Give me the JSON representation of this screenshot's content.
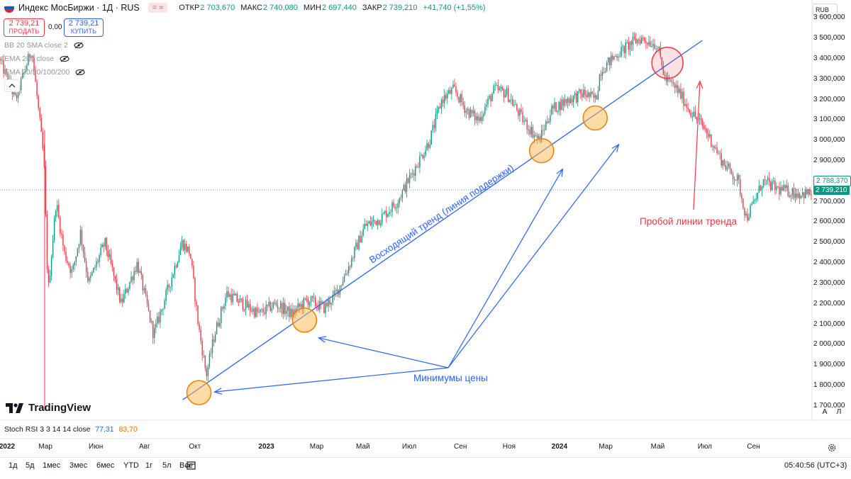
{
  "header": {
    "symbol_title": "Индекс МосБиржи · 1Д · RUS",
    "badge": "= ≈",
    "ohlc": [
      {
        "label": "ОТКР",
        "value": "2 703,670"
      },
      {
        "label": "МАКС",
        "value": "2 740,080"
      },
      {
        "label": "МИН",
        "value": "2 697,440"
      },
      {
        "label": "ЗАКР",
        "value": "2 739,210"
      }
    ],
    "change": "+41,740 (+1,55%)"
  },
  "trade": {
    "sell_price": "2 739,21",
    "sell_label": "ПРОДАТЬ",
    "spread": "0,00",
    "buy_price": "2 739,21",
    "buy_label": "КУПИТЬ"
  },
  "indicators": [
    "BB 20 SMA close 2",
    "EMA 200 close",
    "EMA 20/50/100/200"
  ],
  "currency": "RUB",
  "price_axis": {
    "labels": [
      "3 600,000",
      "3 500,000",
      "3 400,000",
      "3 300,000",
      "3 200,000",
      "3 100,000",
      "3 000,000",
      "2 900,000",
      "2 800,000",
      "2 700,000",
      "2 600,000",
      "2 500,000",
      "2 400,000",
      "2 300,000",
      "2 200,000",
      "2 100,000",
      "2 000,000",
      "1 900,000",
      "1 800,000",
      "1 700,000"
    ],
    "tag_upper": "2 788,370",
    "tag_current": "2 739,210"
  },
  "time_axis": [
    "2022",
    "Мар",
    "Июн",
    "Авг",
    "Окт",
    "2023",
    "Мар",
    "Май",
    "Июл",
    "Сен",
    "Ноя",
    "2024",
    "Мар",
    "Май",
    "Июл",
    "Сен"
  ],
  "logo_text": "TradingView",
  "scale_buttons": {
    "auto": "A",
    "log": "Л"
  },
  "stoch": {
    "label": "Stoch RSI 3 3 14 14 close",
    "k": "77,31",
    "d": "83,70"
  },
  "ranges": [
    "1д",
    "5д",
    "1мес",
    "3мес",
    "6мес",
    "YTD",
    "1г",
    "5л",
    "Все"
  ],
  "clock": "05:40:56 (UTC+3)",
  "annotations": {
    "trend": "Восходящий тренд (линия поддержки)",
    "minima": "Минимумы цены",
    "breakout": "Пробой линии тренда"
  },
  "colors": {
    "up": "#089981",
    "down": "#f23645",
    "trend": "#2962ff",
    "circle_fill": "#ffb74d",
    "circle_stroke": "#f57c00",
    "break_circle": "#f23645"
  },
  "chart_data": {
    "type": "candlestick",
    "title": "Индекс МосБиржи · 1Д · RUS",
    "y_range": [
      1630,
      3660
    ],
    "anchors": [
      [
        0.0,
        3400
      ],
      [
        0.02,
        3200
      ],
      [
        0.04,
        3450
      ],
      [
        0.055,
        2900
      ],
      [
        0.06,
        2250
      ],
      [
        0.07,
        2700
      ],
      [
        0.08,
        2450
      ],
      [
        0.09,
        2350
      ],
      [
        0.1,
        2550
      ],
      [
        0.11,
        2300
      ],
      [
        0.13,
        2500
      ],
      [
        0.15,
        2200
      ],
      [
        0.17,
        2400
      ],
      [
        0.19,
        2050
      ],
      [
        0.21,
        2300
      ],
      [
        0.225,
        2500
      ],
      [
        0.235,
        2450
      ],
      [
        0.245,
        2100
      ],
      [
        0.255,
        1850
      ],
      [
        0.265,
        2050
      ],
      [
        0.28,
        2250
      ],
      [
        0.3,
        2200
      ],
      [
        0.32,
        2150
      ],
      [
        0.34,
        2200
      ],
      [
        0.36,
        2150
      ],
      [
        0.38,
        2220
      ],
      [
        0.4,
        2180
      ],
      [
        0.415,
        2250
      ],
      [
        0.43,
        2380
      ],
      [
        0.45,
        2580
      ],
      [
        0.47,
        2620
      ],
      [
        0.49,
        2700
      ],
      [
        0.51,
        2850
      ],
      [
        0.53,
        3000
      ],
      [
        0.545,
        3200
      ],
      [
        0.56,
        3250
      ],
      [
        0.575,
        3150
      ],
      [
        0.59,
        3100
      ],
      [
        0.61,
        3250
      ],
      [
        0.625,
        3230
      ],
      [
        0.645,
        3100
      ],
      [
        0.665,
        3000
      ],
      [
        0.68,
        3150
      ],
      [
        0.7,
        3200
      ],
      [
        0.72,
        3230
      ],
      [
        0.735,
        3200
      ],
      [
        0.74,
        3340
      ],
      [
        0.76,
        3420
      ],
      [
        0.78,
        3480
      ],
      [
        0.79,
        3500
      ],
      [
        0.81,
        3470
      ],
      [
        0.82,
        3300
      ],
      [
        0.835,
        3250
      ],
      [
        0.85,
        3150
      ],
      [
        0.87,
        3050
      ],
      [
        0.89,
        2900
      ],
      [
        0.91,
        2800
      ],
      [
        0.92,
        2620
      ],
      [
        0.93,
        2700
      ],
      [
        0.94,
        2800
      ],
      [
        0.96,
        2760
      ],
      [
        0.985,
        2740
      ]
    ],
    "trendline": [
      [
        0.225,
        1730
      ],
      [
        0.865,
        3490
      ]
    ],
    "minima_circles": [
      [
        0.245,
        1765
      ],
      [
        0.375,
        2120
      ],
      [
        0.667,
        2950
      ],
      [
        0.733,
        3110
      ]
    ],
    "break_circle": [
      0.822,
      3380
    ],
    "x_categories": [
      "2022",
      "Мар",
      "Июн",
      "Авг",
      "Окт",
      "2023",
      "Мар",
      "Май",
      "Июл",
      "Сен",
      "Ноя",
      "2024",
      "Мар",
      "Май",
      "Июл",
      "Сен"
    ],
    "x_positions": [
      0.0,
      0.056,
      0.118,
      0.178,
      0.24,
      0.328,
      0.39,
      0.447,
      0.504,
      0.567,
      0.627,
      0.689,
      0.746,
      0.81,
      0.868,
      0.928
    ],
    "stoch_rsi": {
      "k": 77.31,
      "d": 83.7
    }
  }
}
